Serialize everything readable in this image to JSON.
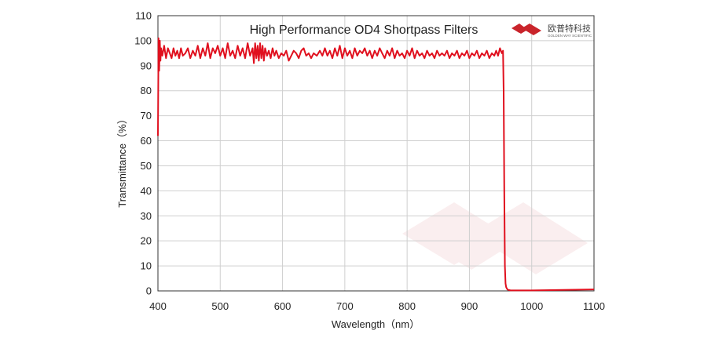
{
  "chart_data": {
    "type": "line",
    "title": "High Performance OD4 Shortpass  Filters",
    "xlabel": "Wavelength（nm）",
    "ylabel": "Transmittance（%）",
    "xlim": [
      400,
      1100
    ],
    "ylim": [
      0,
      110
    ],
    "xticks": [
      400,
      500,
      600,
      700,
      800,
      900,
      1000,
      1100
    ],
    "yticks": [
      0,
      10,
      20,
      30,
      40,
      50,
      60,
      70,
      80,
      90,
      100,
      110
    ],
    "grid": true,
    "line_color": "#e0101e",
    "series": [
      {
        "x": [
          400,
          401,
          402,
          403,
          404,
          405,
          407,
          410,
          413,
          416,
          419,
          422,
          425,
          428,
          431,
          434,
          437,
          440,
          444,
          448,
          452,
          456,
          460,
          464,
          468,
          472,
          476,
          480,
          484,
          488,
          492,
          496,
          500,
          504,
          508,
          512,
          516,
          520,
          524,
          528,
          532,
          536,
          540,
          544,
          548,
          552,
          554,
          556,
          558,
          560,
          562,
          564,
          566,
          568,
          570,
          572,
          575,
          578,
          581,
          584,
          587,
          590,
          594,
          598,
          602,
          606,
          610,
          614,
          618,
          622,
          626,
          630,
          634,
          638,
          642,
          646,
          650,
          655,
          660,
          664,
          668,
          672,
          676,
          680,
          684,
          688,
          692,
          696,
          700,
          704,
          708,
          712,
          716,
          720,
          724,
          728,
          732,
          736,
          740,
          744,
          748,
          752,
          756,
          760,
          764,
          768,
          772,
          776,
          780,
          784,
          788,
          792,
          796,
          800,
          804,
          808,
          812,
          816,
          820,
          824,
          828,
          832,
          836,
          840,
          844,
          848,
          852,
          856,
          860,
          864,
          868,
          872,
          876,
          880,
          884,
          888,
          892,
          896,
          900,
          904,
          908,
          912,
          916,
          920,
          924,
          928,
          932,
          936,
          940,
          943,
          946,
          949,
          952,
          954,
          955,
          956,
          957,
          958,
          959,
          960,
          961,
          962,
          964,
          966,
          970,
          980,
          1000,
          1050,
          1100
        ],
        "values": [
          62,
          101,
          88,
          100,
          92,
          97,
          94,
          98,
          93,
          97,
          95,
          93,
          97,
          94,
          96,
          93,
          97,
          94,
          95,
          97,
          93,
          96,
          94,
          98,
          93,
          97,
          94,
          99,
          93,
          97,
          95,
          98,
          94,
          97,
          93,
          99,
          94,
          96,
          93,
          98,
          94,
          97,
          93,
          99,
          94,
          97,
          91,
          99,
          93,
          98,
          92,
          99,
          93,
          98,
          92,
          97,
          94,
          96,
          93,
          97,
          94,
          96,
          93,
          95,
          94,
          96,
          92,
          94,
          96,
          95,
          93,
          96,
          97,
          94,
          95,
          93,
          95,
          94,
          96,
          94,
          97,
          94,
          96,
          93,
          97,
          94,
          98,
          93,
          97,
          94,
          96,
          93,
          97,
          94,
          96,
          95,
          97,
          94,
          96,
          93,
          96,
          94,
          97,
          95,
          93,
          96,
          94,
          97,
          93,
          96,
          94,
          95,
          93,
          96,
          94,
          97,
          93,
          96,
          94,
          95,
          93,
          96,
          94,
          95,
          93,
          96,
          94,
          95,
          94,
          96,
          93,
          95,
          94,
          96,
          93,
          95,
          94,
          96,
          93,
          95,
          94,
          96,
          93,
          95,
          94,
          96,
          93,
          95,
          94,
          96,
          94,
          97,
          95,
          96,
          80,
          40,
          10,
          3,
          1.5,
          1,
          0.6,
          0.4,
          0.3,
          0.2,
          0.2,
          0.2,
          0.2,
          0.4,
          0.6
        ]
      }
    ]
  },
  "brand": {
    "name_cn": "欧普特科技",
    "name_en": "GOLDEN WAY SCIENTIFIC",
    "logo_color": "#c9242b"
  }
}
